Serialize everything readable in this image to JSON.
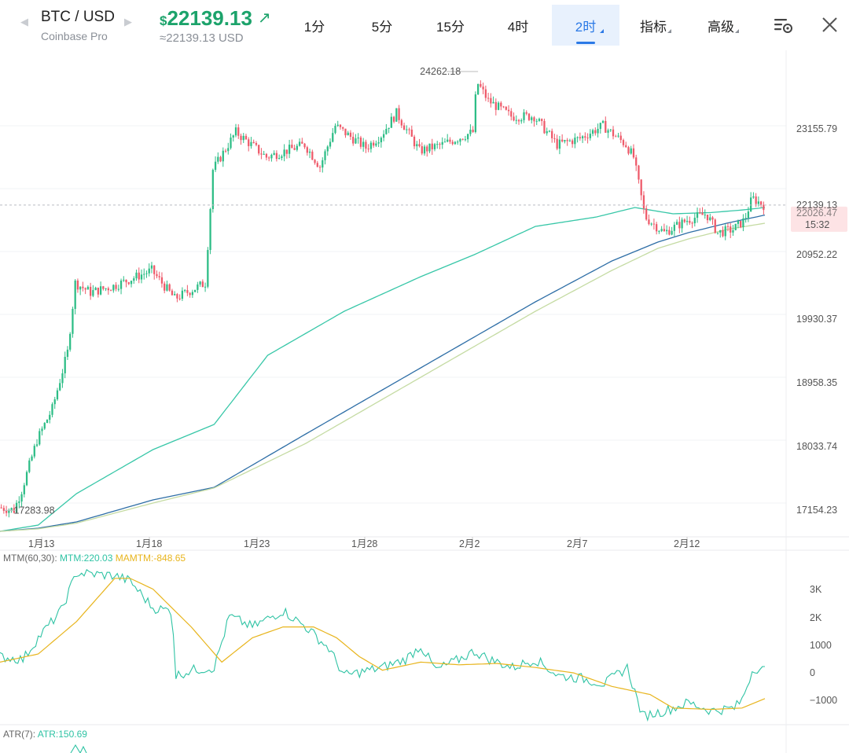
{
  "header": {
    "symbol": "BTC / USD",
    "exchange": "Coinbase Pro",
    "currency_symbol": "$",
    "price": "22139.13",
    "price_usd": "≈22139.13 USD",
    "timeframes": [
      {
        "label": "1分",
        "active": false,
        "has_menu": false
      },
      {
        "label": "5分",
        "active": false,
        "has_menu": false
      },
      {
        "label": "15分",
        "active": false,
        "has_menu": false
      },
      {
        "label": "4时",
        "active": false,
        "has_menu": false
      },
      {
        "label": "2时",
        "active": true,
        "has_menu": true
      },
      {
        "label": "指标",
        "active": false,
        "has_menu": true
      },
      {
        "label": "高级",
        "active": false,
        "has_menu": true
      }
    ],
    "icons": [
      "chart-settings-icon",
      "close-icon"
    ]
  },
  "chart_data": {
    "type": "candlestick",
    "symbol": "BTC / USD",
    "interval": "2时",
    "x_tick_labels": [
      "1月13",
      "1月18",
      "1月23",
      "1月28",
      "2月2",
      "2月7",
      "2月12"
    ],
    "y_tick_labels": [
      "23155.79",
      "20952.22",
      "19930.37",
      "18958.35",
      "18033.74",
      "17154.23"
    ],
    "ylim": [
      16900,
      24400
    ],
    "current_price": 22139.13,
    "current_price_label": "22139.13",
    "secondary_price_label": "22026.47",
    "countdown_label": "15:32",
    "high_marker": {
      "label": "24262.18",
      "value": 24262.18
    },
    "low_marker": {
      "label": "17283.98",
      "value": 17283.98
    },
    "price_keypoints": [
      [
        0,
        17330
      ],
      [
        0.02,
        17290
      ],
      [
        0.03,
        17600
      ],
      [
        0.05,
        18400
      ],
      [
        0.07,
        18900
      ],
      [
        0.09,
        19800
      ],
      [
        0.1,
        20900
      ],
      [
        0.12,
        20750
      ],
      [
        0.15,
        20850
      ],
      [
        0.2,
        21100
      ],
      [
        0.23,
        20650
      ],
      [
        0.27,
        20900
      ],
      [
        0.28,
        22700
      ],
      [
        0.31,
        23300
      ],
      [
        0.35,
        22900
      ],
      [
        0.4,
        23100
      ],
      [
        0.42,
        22750
      ],
      [
        0.44,
        23400
      ],
      [
        0.48,
        23050
      ],
      [
        0.5,
        23250
      ],
      [
        0.52,
        23600
      ],
      [
        0.55,
        23000
      ],
      [
        0.58,
        23100
      ],
      [
        0.62,
        23300
      ],
      [
        0.625,
        24100
      ],
      [
        0.64,
        23800
      ],
      [
        0.67,
        23550
      ],
      [
        0.7,
        23550
      ],
      [
        0.73,
        23100
      ],
      [
        0.76,
        23200
      ],
      [
        0.79,
        23400
      ],
      [
        0.82,
        23100
      ],
      [
        0.83,
        22900
      ],
      [
        0.845,
        21950
      ],
      [
        0.87,
        21700
      ],
      [
        0.9,
        21900
      ],
      [
        0.925,
        22000
      ],
      [
        0.94,
        21700
      ],
      [
        0.96,
        21750
      ],
      [
        0.975,
        21900
      ],
      [
        0.985,
        22250
      ],
      [
        1.0,
        22139
      ]
    ],
    "ma_lines": [
      {
        "color": "#38c7a8",
        "points": [
          [
            0,
            16950
          ],
          [
            0.05,
            17050
          ],
          [
            0.1,
            17550
          ],
          [
            0.2,
            18250
          ],
          [
            0.28,
            18650
          ],
          [
            0.35,
            19750
          ],
          [
            0.45,
            20450
          ],
          [
            0.55,
            21000
          ],
          [
            0.62,
            21350
          ],
          [
            0.7,
            21800
          ],
          [
            0.78,
            21950
          ],
          [
            0.83,
            22100
          ],
          [
            0.88,
            22000
          ],
          [
            0.93,
            22020
          ],
          [
            0.97,
            22060
          ],
          [
            1.0,
            22100
          ]
        ]
      },
      {
        "color": "#2e6ea6",
        "points": [
          [
            0,
            16950
          ],
          [
            0.05,
            17000
          ],
          [
            0.1,
            17100
          ],
          [
            0.2,
            17450
          ],
          [
            0.28,
            17650
          ],
          [
            0.4,
            18500
          ],
          [
            0.5,
            19200
          ],
          [
            0.6,
            19900
          ],
          [
            0.7,
            20600
          ],
          [
            0.8,
            21250
          ],
          [
            0.86,
            21550
          ],
          [
            0.9,
            21700
          ],
          [
            0.95,
            21850
          ],
          [
            1.0,
            21980
          ]
        ]
      },
      {
        "color": "#c5dba3",
        "points": [
          [
            0,
            16950
          ],
          [
            0.05,
            16990
          ],
          [
            0.1,
            17080
          ],
          [
            0.2,
            17400
          ],
          [
            0.28,
            17640
          ],
          [
            0.4,
            18350
          ],
          [
            0.5,
            19050
          ],
          [
            0.6,
            19750
          ],
          [
            0.7,
            20450
          ],
          [
            0.8,
            21100
          ],
          [
            0.86,
            21450
          ],
          [
            0.9,
            21600
          ],
          [
            0.95,
            21750
          ],
          [
            1.0,
            21850
          ]
        ]
      }
    ],
    "indicators": [
      {
        "name": "MTM(60,30)",
        "series": [
          {
            "label": "MTM",
            "value": "220.03",
            "color": "#2fc3a4"
          },
          {
            "label": "MAMTM",
            "value": "-848.65",
            "color": "#e8b51e"
          }
        ],
        "y_tick_labels": [
          "3K",
          "2K",
          "1000",
          "0",
          "−1000"
        ],
        "ylim": [
          -1700,
          4000
        ],
        "mtm_keypoints": [
          [
            0,
            700
          ],
          [
            0.03,
            600
          ],
          [
            0.05,
            1400
          ],
          [
            0.08,
            2400
          ],
          [
            0.1,
            3800
          ],
          [
            0.15,
            3700
          ],
          [
            0.17,
            3500
          ],
          [
            0.2,
            2500
          ],
          [
            0.225,
            2400
          ],
          [
            0.23,
            0
          ],
          [
            0.25,
            200
          ],
          [
            0.28,
            300
          ],
          [
            0.3,
            2200
          ],
          [
            0.33,
            1800
          ],
          [
            0.37,
            2400
          ],
          [
            0.4,
            1800
          ],
          [
            0.43,
            1000
          ],
          [
            0.45,
            0
          ],
          [
            0.5,
            300
          ],
          [
            0.53,
            600
          ],
          [
            0.55,
            1100
          ],
          [
            0.57,
            200
          ],
          [
            0.6,
            600
          ],
          [
            0.62,
            900
          ],
          [
            0.64,
            600
          ],
          [
            0.67,
            300
          ],
          [
            0.7,
            600
          ],
          [
            0.73,
            0
          ],
          [
            0.76,
            -100
          ],
          [
            0.79,
            -300
          ],
          [
            0.82,
            300
          ],
          [
            0.84,
            -1500
          ],
          [
            0.87,
            -1300
          ],
          [
            0.9,
            -1000
          ],
          [
            0.93,
            -1300
          ],
          [
            0.96,
            -1200
          ],
          [
            0.97,
            -900
          ],
          [
            0.985,
            300
          ],
          [
            1.0,
            200
          ]
        ],
        "mamtm_keypoints": [
          [
            0,
            500
          ],
          [
            0.05,
            800
          ],
          [
            0.1,
            2000
          ],
          [
            0.15,
            3600
          ],
          [
            0.17,
            3600
          ],
          [
            0.2,
            3200
          ],
          [
            0.25,
            1800
          ],
          [
            0.29,
            500
          ],
          [
            0.33,
            1400
          ],
          [
            0.37,
            1800
          ],
          [
            0.41,
            1800
          ],
          [
            0.44,
            1400
          ],
          [
            0.47,
            700
          ],
          [
            0.5,
            200
          ],
          [
            0.55,
            500
          ],
          [
            0.6,
            400
          ],
          [
            0.65,
            450
          ],
          [
            0.7,
            300
          ],
          [
            0.75,
            100
          ],
          [
            0.8,
            -400
          ],
          [
            0.85,
            -700
          ],
          [
            0.88,
            -1200
          ],
          [
            0.93,
            -1250
          ],
          [
            0.97,
            -1200
          ],
          [
            1.0,
            -850
          ]
        ]
      },
      {
        "name": "ATR(7)",
        "series": [
          {
            "label": "ATR",
            "value": "150.69",
            "color": "#2fc3a4"
          }
        ]
      }
    ],
    "colors": {
      "up": "#2dbd86",
      "down": "#ee5a6a",
      "grid": "#f2f3f5",
      "axis_text": "#555555",
      "badge_bg": "#fde3e5",
      "badge_text": "#e23a4f"
    }
  }
}
